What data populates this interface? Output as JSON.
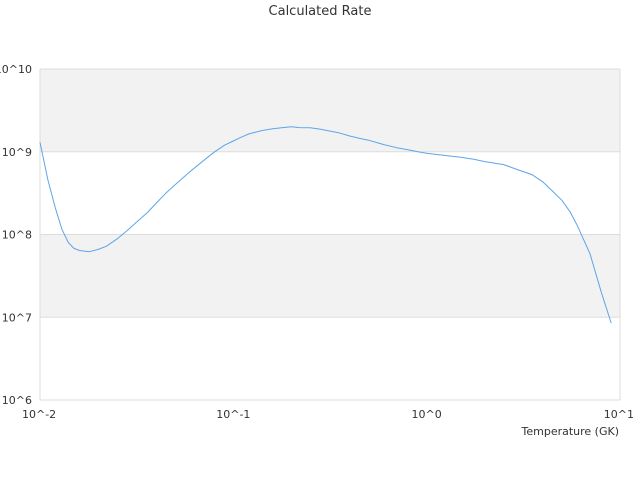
{
  "chart_data": {
    "type": "line",
    "title": "Calculated Rate",
    "xlabel": "Temperature (GK)",
    "ylabel": "",
    "x_scale": "log",
    "y_scale": "log",
    "xlim": [
      0.01,
      10
    ],
    "ylim": [
      1000000,
      10000000000
    ],
    "x_tick_values": [
      0.01,
      0.1,
      1,
      10
    ],
    "x_tick_labels": [
      "10^-2",
      "10^-1",
      "10^0",
      "10^1"
    ],
    "y_tick_values": [
      1000000,
      10000000,
      100000000,
      1000000000,
      10000000000
    ],
    "y_tick_labels": [
      "10^6",
      "10^7",
      "10^8",
      "10^9",
      "10^10"
    ],
    "grid": true,
    "legend": "none",
    "colors": {
      "line": "#5da5e8",
      "band": "#f2f2f2",
      "grid": "#dddddd",
      "text": "#333333"
    },
    "series": [
      {
        "x": [
          0.01,
          0.011,
          0.012,
          0.013,
          0.014,
          0.015,
          0.016,
          0.018,
          0.02,
          0.022,
          0.025,
          0.028,
          0.032,
          0.036,
          0.04,
          0.045,
          0.05,
          0.06,
          0.07,
          0.08,
          0.09,
          0.1,
          0.11,
          0.12,
          0.14,
          0.16,
          0.18,
          0.2,
          0.22,
          0.25,
          0.28,
          0.3,
          0.35,
          0.4,
          0.45,
          0.5,
          0.6,
          0.7,
          0.8,
          0.9,
          1.0,
          1.25,
          1.5,
          1.75,
          2.0,
          2.5,
          3.0,
          3.5,
          4.0,
          4.5,
          5.0,
          5.5,
          6.0,
          7.0,
          8.0,
          9.0
        ],
        "y": [
          1300000000,
          450000000,
          210000000,
          115000000,
          80000000,
          68000000,
          64000000,
          62000000,
          66000000,
          72000000,
          88000000,
          110000000,
          145000000,
          185000000,
          240000000,
          320000000,
          400000000,
          580000000,
          780000000,
          1000000000,
          1200000000,
          1350000000,
          1500000000,
          1640000000,
          1800000000,
          1900000000,
          1960000000,
          2000000000,
          1960000000,
          1950000000,
          1880000000,
          1820000000,
          1700000000,
          1550000000,
          1450000000,
          1380000000,
          1220000000,
          1120000000,
          1060000000,
          1000000000,
          960000000,
          900000000,
          860000000,
          810000000,
          760000000,
          700000000,
          600000000,
          530000000,
          430000000,
          330000000,
          260000000,
          190000000,
          130000000,
          58000000,
          20000000,
          8500000
        ]
      }
    ]
  }
}
